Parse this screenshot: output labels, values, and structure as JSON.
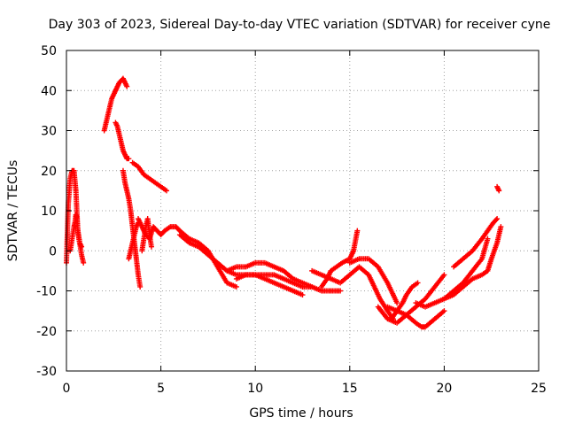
{
  "chart_data": {
    "type": "scatter",
    "title": "Day 303 of 2023, Sidereal Day-to-day VTEC variation (SDTVAR) for receiver cyne",
    "xlabel": "GPS time / hours",
    "ylabel": "SDTVAR / TECUs",
    "xlim": [
      0,
      25
    ],
    "ylim": [
      -30,
      50
    ],
    "xticks": [
      0,
      5,
      10,
      15,
      20,
      25
    ],
    "yticks": [
      -30,
      -20,
      -10,
      0,
      10,
      20,
      30,
      40,
      50
    ],
    "xtick_labels": [
      "0",
      "5",
      "10",
      "15",
      "20",
      "25"
    ],
    "ytick_labels": [
      "-30",
      "-20",
      "-10",
      "0",
      "10",
      "20",
      "30",
      "40",
      "50"
    ],
    "grid": true,
    "marker": "+",
    "color": "#ff0000",
    "series": [
      {
        "name": "s1",
        "x": [
          0.0,
          0.1,
          0.2,
          0.3,
          0.4,
          0.5,
          0.6,
          0.7,
          0.8,
          0.9
        ],
        "y": [
          -3,
          12,
          18,
          20,
          20,
          15,
          5,
          2,
          -1,
          -3
        ]
      },
      {
        "name": "s2",
        "x": [
          0.2,
          0.3,
          0.4,
          0.45,
          0.5,
          0.55,
          0.6,
          0.7,
          0.8
        ],
        "y": [
          0,
          3,
          6,
          7,
          9,
          8,
          5,
          2,
          1
        ]
      },
      {
        "name": "s3",
        "x": [
          2.0,
          2.2,
          2.4,
          2.6,
          2.8,
          3.0,
          3.1,
          3.2
        ],
        "y": [
          30,
          34,
          38,
          40,
          42,
          43,
          42,
          41
        ]
      },
      {
        "name": "s4",
        "x": [
          2.6,
          2.7,
          2.8,
          2.9,
          3.0,
          3.1,
          3.2,
          3.3
        ],
        "y": [
          32,
          31,
          29,
          27,
          25,
          24,
          23,
          23
        ]
      },
      {
        "name": "s5",
        "x": [
          3.5,
          3.8,
          4.1,
          4.4,
          4.7,
          5.0,
          5.3
        ],
        "y": [
          22,
          21,
          19,
          18,
          17,
          16,
          15
        ]
      },
      {
        "name": "s6",
        "x": [
          3.0,
          3.1,
          3.2,
          3.3,
          3.4,
          3.5,
          3.6,
          3.7,
          3.8,
          3.9
        ],
        "y": [
          20,
          17,
          15,
          13,
          10,
          6,
          2,
          -2,
          -6,
          -9
        ]
      },
      {
        "name": "s7",
        "x": [
          3.3,
          3.4,
          3.5,
          3.6,
          3.7,
          3.8
        ],
        "y": [
          -2,
          0,
          2,
          4,
          6,
          7
        ]
      },
      {
        "name": "s8",
        "x": [
          3.8,
          4.0,
          4.2,
          4.4,
          4.6,
          4.8,
          5.0,
          5.2,
          5.5,
          5.8,
          6.0
        ],
        "y": [
          8,
          6,
          4,
          3,
          6,
          5,
          4,
          5,
          6,
          6,
          5
        ]
      },
      {
        "name": "s9",
        "x": [
          4.0,
          4.1,
          4.2,
          4.3,
          4.4,
          4.5
        ],
        "y": [
          0,
          3,
          6,
          8,
          4,
          1
        ]
      },
      {
        "name": "s10",
        "x": [
          6.0,
          6.5,
          7.0,
          7.5,
          8.0,
          8.5,
          9.0
        ],
        "y": [
          5,
          3,
          2,
          0,
          -4,
          -8,
          -9
        ]
      },
      {
        "name": "s11",
        "x": [
          6.0,
          6.5,
          7.0,
          7.5,
          8.0,
          8.5,
          9.0,
          9.5,
          10.0,
          10.5,
          11.0,
          11.5,
          12.0,
          12.5
        ],
        "y": [
          4,
          2,
          1,
          -1,
          -3,
          -5,
          -6,
          -6,
          -6,
          -7,
          -8,
          -9,
          -10,
          -11
        ]
      },
      {
        "name": "s12",
        "x": [
          8.5,
          9.0,
          9.5,
          10.0,
          10.5,
          11.0,
          11.5,
          12.0,
          12.5,
          13.0
        ],
        "y": [
          -5,
          -4,
          -4,
          -3,
          -3,
          -4,
          -5,
          -7,
          -8,
          -9
        ]
      },
      {
        "name": "s13",
        "x": [
          9.0,
          9.5,
          10.0,
          10.5,
          11.0,
          11.5,
          12.0,
          12.5,
          13.0,
          13.5,
          14.0,
          14.5
        ],
        "y": [
          -7,
          -6,
          -6,
          -6,
          -6,
          -7,
          -8,
          -9,
          -9,
          -10,
          -10,
          -10
        ]
      },
      {
        "name": "s14",
        "x": [
          13.5,
          13.8,
          14.0,
          14.3,
          14.6,
          15.0,
          15.2,
          15.4
        ],
        "y": [
          -9,
          -7,
          -5,
          -4,
          -3,
          -2,
          0,
          5
        ]
      },
      {
        "name": "s15",
        "x": [
          13.0,
          13.5,
          14.0,
          14.5,
          15.0,
          15.5,
          16.0,
          16.3,
          16.6,
          17.0,
          17.3
        ],
        "y": [
          -5,
          -6,
          -7,
          -8,
          -6,
          -4,
          -6,
          -9,
          -12,
          -15,
          -17
        ]
      },
      {
        "name": "s16",
        "x": [
          15.0,
          15.5,
          16.0,
          16.5,
          17.0,
          17.5
        ],
        "y": [
          -3,
          -2,
          -2,
          -4,
          -8,
          -13
        ]
      },
      {
        "name": "s17",
        "x": [
          16.5,
          17.0,
          17.5,
          18.0,
          18.5,
          19.0,
          19.5,
          20.0
        ],
        "y": [
          -14,
          -17,
          -18,
          -16,
          -14,
          -12,
          -9,
          -6
        ]
      },
      {
        "name": "s18",
        "x": [
          17.2,
          17.5,
          17.8,
          18.0,
          18.3,
          18.6
        ],
        "y": [
          -17,
          -15,
          -13,
          -11,
          -9,
          -8
        ]
      },
      {
        "name": "s19",
        "x": [
          17.0,
          17.5,
          18.0,
          18.5,
          18.8,
          19.0,
          19.5,
          20.0
        ],
        "y": [
          -14,
          -15,
          -16,
          -18,
          -19,
          -19,
          -17,
          -15
        ]
      },
      {
        "name": "s20",
        "x": [
          18.5,
          19.0,
          19.5,
          20.0,
          20.5,
          21.0,
          21.5,
          22.0,
          22.3
        ],
        "y": [
          -13,
          -14,
          -13,
          -12,
          -10,
          -8,
          -5,
          -2,
          3
        ]
      },
      {
        "name": "s21",
        "x": [
          20.0,
          20.5,
          21.0,
          21.5,
          22.0,
          22.3,
          22.5,
          22.8,
          23.0
        ],
        "y": [
          -12,
          -11,
          -9,
          -7,
          -6,
          -5,
          -2,
          2,
          6
        ]
      },
      {
        "name": "s22",
        "x": [
          20.5,
          21.0,
          21.5,
          22.0,
          22.3,
          22.6,
          22.8
        ],
        "y": [
          -4,
          -2,
          0,
          3,
          5,
          7,
          8
        ]
      },
      {
        "name": "s23",
        "x": [
          22.8,
          22.9
        ],
        "y": [
          16,
          15
        ]
      }
    ]
  }
}
